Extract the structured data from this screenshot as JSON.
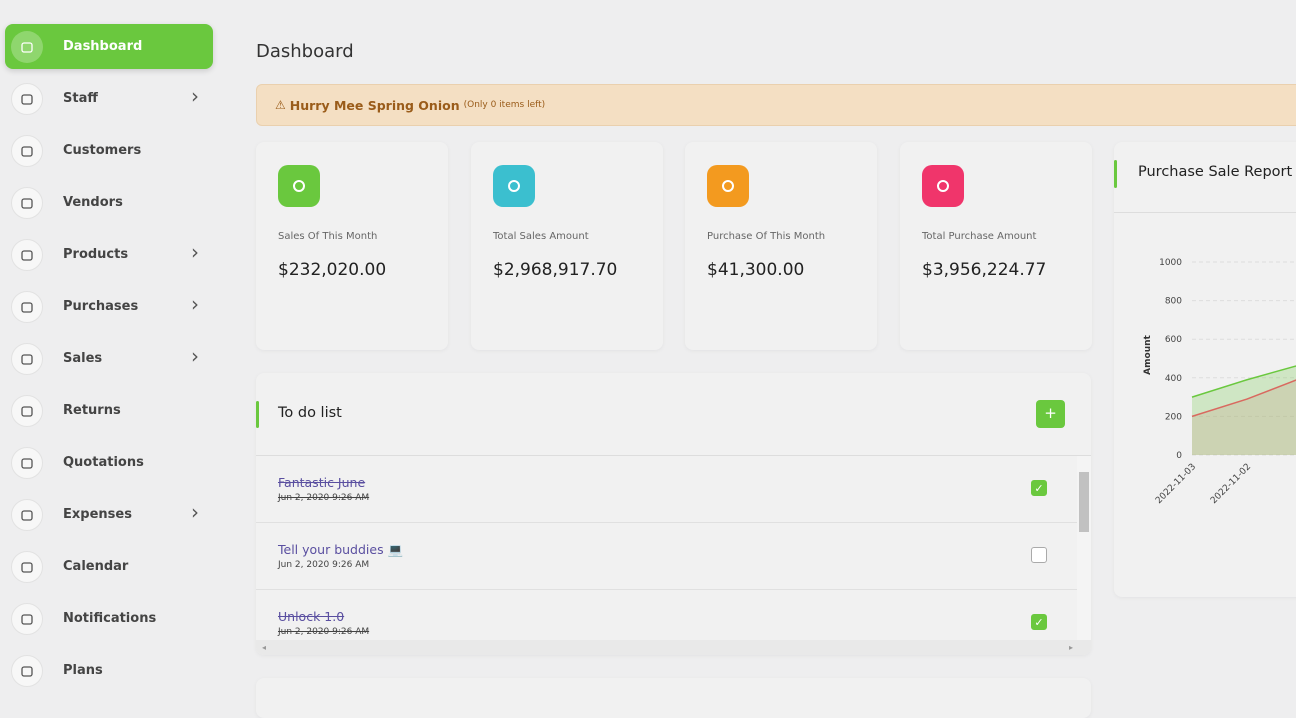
{
  "sidebar": {
    "items": [
      {
        "label": "Dashboard",
        "active": true
      },
      {
        "label": "Staff",
        "submenu": true
      },
      {
        "label": "Customers"
      },
      {
        "label": "Vendors"
      },
      {
        "label": "Products",
        "submenu": true
      },
      {
        "label": "Purchases",
        "submenu": true
      },
      {
        "label": "Sales",
        "submenu": true
      },
      {
        "label": "Returns"
      },
      {
        "label": "Quotations"
      },
      {
        "label": "Expenses",
        "submenu": true
      },
      {
        "label": "Calendar"
      },
      {
        "label": "Notifications"
      },
      {
        "label": "Plans"
      }
    ]
  },
  "header": {
    "title": "Dashboard"
  },
  "alert": {
    "title": "Hurry Mee Spring Onion",
    "note": "(Only 0 items left)"
  },
  "stats": [
    {
      "label": "Sales Of This Month",
      "value": "$232,020.00",
      "color": "#6ac83e"
    },
    {
      "label": "Total Sales Amount",
      "value": "$2,968,917.70",
      "color": "#3bbfcf"
    },
    {
      "label": "Purchase Of This Month",
      "value": "$41,300.00",
      "color": "#f39a1f"
    },
    {
      "label": "Total Purchase Amount",
      "value": "$3,956,224.77",
      "color": "#f0356b"
    }
  ],
  "todo": {
    "title": "To do list",
    "add": "+",
    "items": [
      {
        "title": "Fantastic June",
        "date": "Jun 2, 2020 9:26 AM",
        "done": true
      },
      {
        "title": "Tell your buddies 💻",
        "date": "Jun 2, 2020 9:26 AM",
        "done": false
      },
      {
        "title": "Unlock 1.0",
        "date": "Jun 2, 2020 9:26 AM",
        "done": true
      }
    ]
  },
  "report": {
    "title": "Purchase Sale Report",
    "chart": {
      "type": "line",
      "ylabel": "Amount",
      "categories": [
        "2022-11-03",
        "2022-11-02",
        null
      ],
      "series": [
        {
          "color": "#6ac83e",
          "values": [
            300,
            390,
            470
          ]
        },
        {
          "color": "#d9695f",
          "values": [
            200,
            290,
            400
          ]
        }
      ],
      "ylim": [
        0,
        1000
      ],
      "yticks": [
        0,
        200,
        400,
        600,
        800,
        1000
      ],
      "grid": true
    }
  }
}
